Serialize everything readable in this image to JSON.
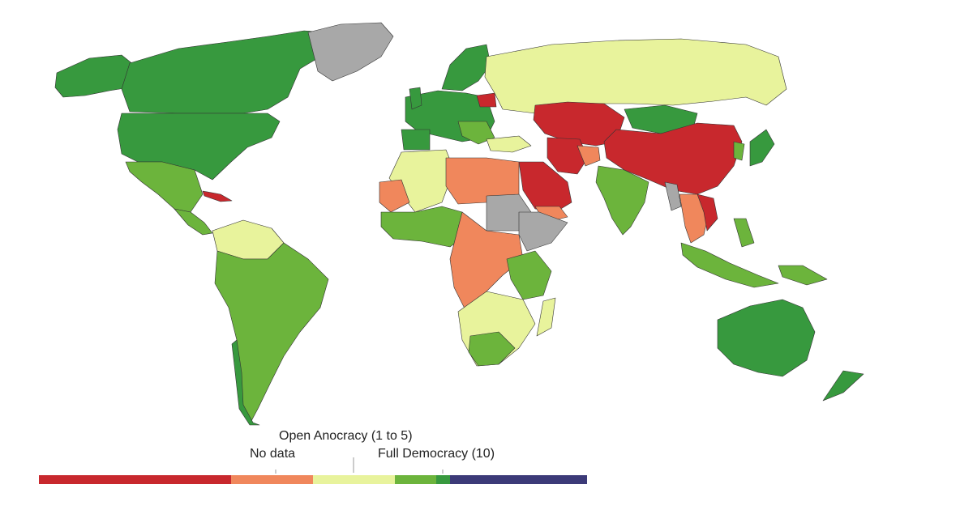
{
  "legend": {
    "labels": {
      "open_anocracy": "Open Anocracy (1 to 5)",
      "no_data": "No data",
      "full_democracy": "Full Democracy (10)"
    },
    "segments": [
      {
        "color": "#c8282d",
        "share": 0.35
      },
      {
        "color": "#f0875c",
        "share": 0.15
      },
      {
        "color": "#e8f39c",
        "share": 0.15
      },
      {
        "color": "#6cb43c",
        "share": 0.075
      },
      {
        "color": "#37993e",
        "share": 0.025
      },
      {
        "color": "#3c3a78",
        "share": 0.25
      }
    ]
  },
  "colors": {
    "autocracy": "#c8282d",
    "closed_anocracy": "#f0875c",
    "open_anocracy": "#e8f39c",
    "democracy": "#6cb43c",
    "full_democracy": "#37993e",
    "no_data": "#a8a8a8",
    "border": "#333333"
  }
}
